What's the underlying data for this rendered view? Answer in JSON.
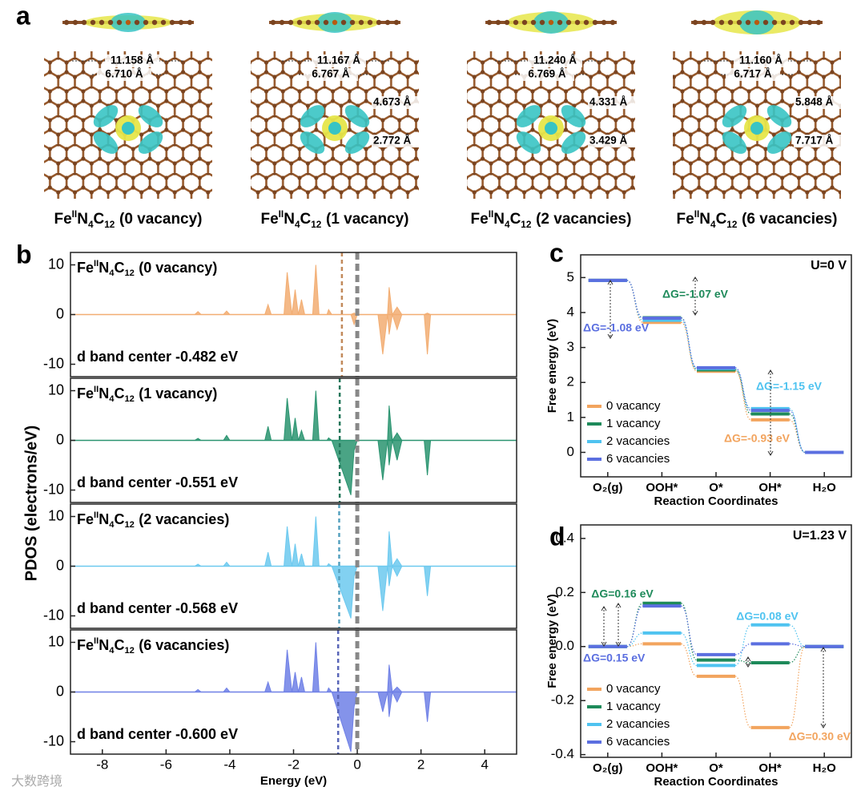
{
  "panel_labels": [
    "a",
    "b",
    "c",
    "d"
  ],
  "formula": {
    "el1": "Fe",
    "ox": "II",
    "el2": "N",
    "n2": "4",
    "el3": "C",
    "n3": "12"
  },
  "structures": [
    {
      "label": "(0 vacancy)",
      "distances": [
        "11.158 Å",
        "6.710 Å"
      ]
    },
    {
      "label": "(1 vacancy)",
      "distances": [
        "11.167 Å",
        "6.767 Å",
        "4.673 Å",
        "2.772 Å"
      ]
    },
    {
      "label": "(2 vacancies)",
      "distances": [
        "11.240 Å",
        "6.769 Å",
        "4.331 Å",
        "3.429 Å"
      ]
    },
    {
      "label": "(6 vacancies)",
      "distances": [
        "11.160 Å",
        "6.717 Å",
        "5.848 Å",
        "7.717 Å"
      ]
    }
  ],
  "watermark": "大数跨境",
  "chart_data": [
    {
      "type": "area",
      "label": "(0 vacancy)",
      "annotation": "d band center -0.482 eV",
      "d_band_center": -0.482,
      "fermi_level": 0,
      "ylabel": "PDOS (electrons/eV)",
      "x": [
        -9,
        -5.1,
        -5.0,
        -4.9,
        -4.2,
        -4.1,
        -4.0,
        -2.9,
        -2.8,
        -2.7,
        -2.3,
        -2.2,
        -2.05,
        -1.95,
        -1.85,
        -1.75,
        -1.65,
        -1.4,
        -1.3,
        -1.2,
        -0.95,
        -0.9,
        -0.8,
        -0.2,
        -0.1,
        0.0,
        0.65,
        0.8,
        0.95,
        1.0,
        1.1,
        1.25,
        1.4,
        2.1,
        2.2,
        2.3,
        5
      ],
      "series": [
        {
          "color": "#f2ad72",
          "values": [
            0,
            0,
            0.6,
            0,
            0,
            0.7,
            0,
            0,
            2,
            0,
            0,
            8.5,
            0,
            5,
            0,
            3,
            0,
            0,
            10,
            0,
            0,
            1,
            0,
            0,
            0.3,
            0,
            0,
            0,
            0,
            5.5,
            0,
            1.5,
            0,
            0,
            0.3,
            0,
            0
          ]
        },
        {
          "color": "#f2ad72",
          "values": [
            0,
            0,
            0,
            0,
            0,
            0,
            0,
            0,
            0,
            0,
            0,
            0,
            0,
            0,
            0,
            0,
            0,
            0,
            0,
            0,
            0,
            0,
            0,
            0,
            -2,
            0,
            0,
            -8,
            0,
            -4,
            0,
            -3,
            0,
            0,
            -8,
            0,
            0
          ]
        }
      ],
      "xlim": [
        -9,
        5
      ],
      "ylim": [
        -12.5,
        12.5
      ],
      "yticks": [
        -10,
        0,
        10
      ]
    },
    {
      "type": "area",
      "label": "(1 vacancy)",
      "annotation": "d band center -0.551 eV",
      "d_band_center": -0.551,
      "fermi_level": 0,
      "x": [
        -9,
        -5.1,
        -5.0,
        -4.9,
        -4.2,
        -4.1,
        -4.0,
        -2.9,
        -2.8,
        -2.7,
        -2.3,
        -2.2,
        -2.05,
        -1.95,
        -1.85,
        -1.75,
        -1.65,
        -1.4,
        -1.3,
        -1.2,
        -0.95,
        -0.9,
        -0.8,
        -0.2,
        -0.1,
        0.0,
        0.65,
        0.8,
        0.95,
        1.0,
        1.1,
        1.25,
        1.4,
        2.1,
        2.2,
        2.3,
        5
      ],
      "series": [
        {
          "color": "#2a9470",
          "values": [
            0,
            0,
            0.4,
            0,
            0,
            1,
            0,
            0,
            2.8,
            0,
            0,
            8.5,
            0,
            4.5,
            0,
            2,
            0,
            0,
            10,
            0,
            0,
            0.5,
            0,
            0,
            0,
            0,
            0,
            0,
            0,
            7,
            0,
            1.5,
            0,
            0,
            0,
            0,
            0
          ]
        },
        {
          "color": "#2a9470",
          "values": [
            0,
            0,
            0,
            0,
            0,
            0,
            0,
            0,
            0,
            0,
            0,
            0,
            0,
            0,
            0,
            0,
            0,
            0,
            0,
            0,
            0,
            0,
            0,
            -11,
            -2,
            0,
            0,
            -8,
            0,
            -5,
            0,
            -4,
            0,
            0,
            -7,
            0,
            0
          ]
        }
      ],
      "xlim": [
        -9,
        5
      ],
      "ylim": [
        -12.5,
        12.5
      ],
      "yticks": [
        -10,
        0,
        10
      ]
    },
    {
      "type": "area",
      "label": "(2 vacancies)",
      "annotation": "d band center -0.568 eV",
      "d_band_center": -0.568,
      "fermi_level": 0,
      "x": [
        -9,
        -5.1,
        -5.0,
        -4.9,
        -4.2,
        -4.1,
        -4.0,
        -2.9,
        -2.8,
        -2.7,
        -2.3,
        -2.2,
        -2.05,
        -1.95,
        -1.85,
        -1.75,
        -1.65,
        -1.4,
        -1.3,
        -1.2,
        -0.95,
        -0.9,
        -0.8,
        -0.2,
        -0.1,
        0.0,
        0.65,
        0.8,
        0.95,
        1.0,
        1.1,
        1.25,
        1.4,
        2.1,
        2.2,
        2.3,
        5
      ],
      "series": [
        {
          "color": "#6cc9ef",
          "values": [
            0,
            0,
            0.4,
            0,
            0,
            0.8,
            0,
            0,
            2.8,
            0,
            0,
            8,
            0,
            4.5,
            0,
            2.5,
            0,
            0,
            10,
            0,
            0,
            0.5,
            0,
            0,
            0,
            0,
            0,
            0,
            0,
            7,
            0,
            1.5,
            0,
            0,
            0,
            0,
            0
          ]
        },
        {
          "color": "#6cc9ef",
          "values": [
            0,
            0,
            0,
            0,
            0,
            0,
            0,
            0,
            0,
            0,
            0,
            0,
            0,
            0,
            0,
            0,
            0,
            0,
            0,
            0,
            0,
            0,
            0,
            -10.5,
            -2,
            0,
            0,
            -9,
            0,
            -4,
            0,
            -2,
            0,
            0,
            -6,
            0,
            0
          ]
        }
      ],
      "xlim": [
        -9,
        5
      ],
      "ylim": [
        -12.5,
        12.5
      ],
      "yticks": [
        -10,
        0,
        10
      ]
    },
    {
      "type": "area",
      "label": "(6 vacancies)",
      "annotation": "d band center -0.600 eV",
      "d_band_center": -0.6,
      "fermi_level": 0,
      "x": [
        -9,
        -5.1,
        -5.0,
        -4.9,
        -4.2,
        -4.1,
        -4.0,
        -2.9,
        -2.8,
        -2.7,
        -2.3,
        -2.2,
        -2.05,
        -1.95,
        -1.85,
        -1.75,
        -1.65,
        -1.4,
        -1.3,
        -1.2,
        -0.95,
        -0.9,
        -0.8,
        -0.2,
        -0.1,
        0.0,
        0.65,
        0.8,
        0.95,
        1.0,
        1.1,
        1.25,
        1.4,
        2.1,
        2.2,
        2.3,
        5
      ],
      "series": [
        {
          "color": "#6f80e6",
          "values": [
            0,
            0,
            0.5,
            0,
            0,
            0.8,
            0,
            0,
            2,
            0,
            0,
            8.5,
            0,
            4,
            0,
            3,
            0,
            0,
            10,
            0,
            0,
            0.8,
            0,
            0,
            0,
            0,
            0,
            0,
            0,
            5.5,
            0,
            1,
            0,
            0,
            0,
            0,
            0
          ]
        },
        {
          "color": "#6f80e6",
          "values": [
            0,
            0,
            0,
            0,
            0,
            0,
            0,
            0,
            0,
            0,
            0,
            0,
            0,
            0,
            0,
            0,
            0,
            0,
            0,
            0,
            0,
            0,
            0,
            -12,
            -3,
            0,
            0,
            -4,
            0,
            -5,
            0,
            -2,
            0,
            0,
            -6,
            0,
            0
          ]
        }
      ],
      "xlim": [
        -9,
        5
      ],
      "ylim": [
        -12.5,
        12.5
      ],
      "yticks": [
        -10,
        0,
        10
      ],
      "xticks": [
        -8,
        -6,
        -4,
        -2,
        0,
        2,
        4
      ],
      "xlabel": "Energy (eV)"
    },
    {
      "type": "levels",
      "condition": "U=0 V",
      "xlabel": "Reaction Coordinates",
      "ylabel": "Free energy (eV)",
      "categories": [
        "O₂(g)",
        "OOH*",
        "O*",
        "OH*",
        "H₂O"
      ],
      "series": [
        {
          "name": "0 vacancy",
          "color": "#f2a45e",
          "values": [
            4.92,
            3.72,
            2.32,
            0.93,
            0
          ]
        },
        {
          "name": "1 vacancy",
          "color": "#1e8a5a",
          "values": [
            4.92,
            3.85,
            2.36,
            1.1,
            0
          ]
        },
        {
          "name": "2 vacancies",
          "color": "#4fc3f0",
          "values": [
            4.92,
            3.78,
            2.4,
            1.25,
            0
          ]
        },
        {
          "name": "6 vacancies",
          "color": "#5b6fe0",
          "values": [
            4.92,
            3.84,
            2.42,
            1.2,
            0
          ]
        }
      ],
      "ylim": [
        -0.7,
        5.65
      ],
      "yticks": [
        0,
        1,
        2,
        3,
        4,
        5
      ],
      "annotations": [
        {
          "text": "ΔG=-1.07 eV",
          "color": "#1e8a5a"
        },
        {
          "text": "ΔG=-1.08 eV",
          "color": "#5b6fe0"
        },
        {
          "text": "ΔG=-1.15 eV",
          "color": "#4fc3f0"
        },
        {
          "text": "ΔG=-0.93 eV",
          "color": "#f2a45e"
        }
      ]
    },
    {
      "type": "levels",
      "condition": "U=1.23 V",
      "xlabel": "Reaction Coordinates",
      "ylabel": "Free energy (eV)",
      "categories": [
        "O₂(g)",
        "OOH*",
        "O*",
        "OH*",
        "H₂O"
      ],
      "series": [
        {
          "name": "0 vacancy",
          "color": "#f2a45e",
          "values": [
            0,
            0.01,
            -0.11,
            -0.3,
            0
          ]
        },
        {
          "name": "1 vacancy",
          "color": "#1e8a5a",
          "values": [
            0,
            0.16,
            -0.05,
            -0.06,
            0
          ]
        },
        {
          "name": "2 vacancies",
          "color": "#4fc3f0",
          "values": [
            0,
            0.05,
            -0.07,
            0.08,
            0
          ]
        },
        {
          "name": "6 vacancies",
          "color": "#5b6fe0",
          "values": [
            0,
            0.15,
            -0.03,
            0.01,
            0
          ]
        }
      ],
      "ylim": [
        -0.41,
        0.45
      ],
      "yticks": [
        -0.4,
        -0.2,
        {
          "value": 0,
          "label": "0.0"
        },
        0.2,
        0.4
      ],
      "annotations": [
        {
          "text": "ΔG=0.16 eV",
          "color": "#1e8a5a"
        },
        {
          "text": "ΔG=0.15 eV",
          "color": "#5b6fe0"
        },
        {
          "text": "ΔG=0.08 eV",
          "color": "#4fc3f0"
        },
        {
          "text": "ΔG=0.30 eV",
          "color": "#f2a45e"
        }
      ]
    }
  ]
}
